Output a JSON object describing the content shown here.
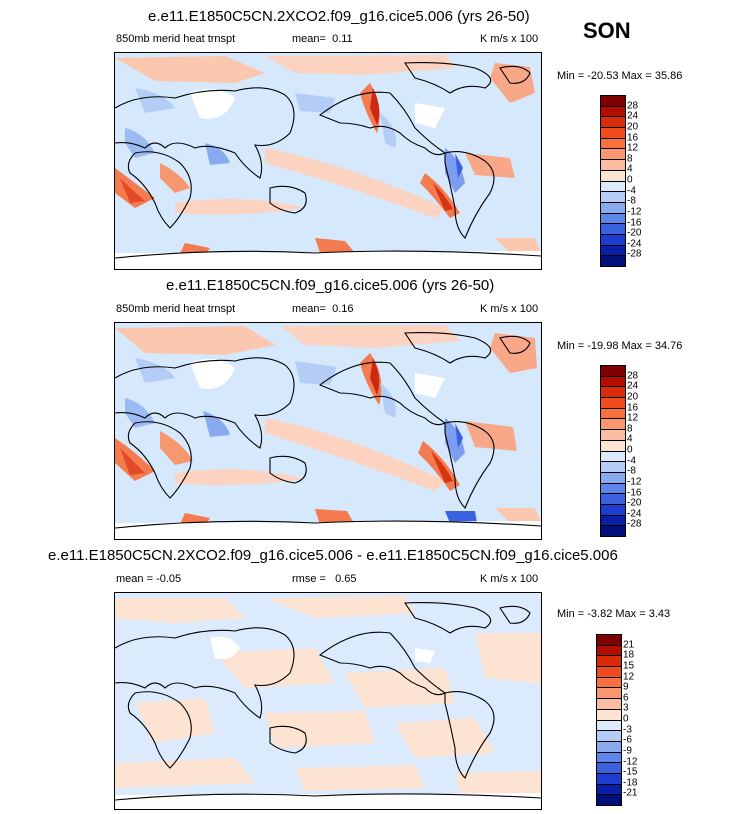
{
  "season": "SON",
  "units": "K m/s x 100",
  "panels": [
    {
      "title": "e.e11.E1850C5CN.2XCO2.f09_g16.cice5.006 (yrs 26-50)",
      "variable": "850mb merid heat trnspt",
      "mean_label": "mean=",
      "mean": "0.11",
      "minmax": "Min = -20.53 Max =  35.86",
      "levels": [
        "28",
        "24",
        "20",
        "16",
        "12",
        "8",
        "4",
        "0",
        "-4",
        "-8",
        "-12",
        "-16",
        "-20",
        "-24",
        "-28"
      ]
    },
    {
      "title": "e.e11.E1850C5CN.f09_g16.cice5.006 (yrs 26-50)",
      "variable": "850mb merid heat trnspt",
      "mean_label": "mean=",
      "mean": "0.16",
      "minmax": "Min = -19.98 Max =  34.76",
      "levels": [
        "28",
        "24",
        "20",
        "16",
        "12",
        "8",
        "4",
        "0",
        "-4",
        "-8",
        "-12",
        "-16",
        "-20",
        "-24",
        "-28"
      ]
    },
    {
      "title": "e.e11.E1850C5CN.2XCO2.f09_g16.cice5.006 - e.e11.E1850C5CN.f09_g16.cice5.006",
      "mean_label": "mean =",
      "mean": "-0.05",
      "rmse_label": "rmse =",
      "rmse": "0.65",
      "minmax": "Min =  -3.82 Max =   3.43",
      "levels": [
        "21",
        "18",
        "15",
        "12",
        "9",
        "6",
        "3",
        "0",
        "-3",
        "-6",
        "-9",
        "-12",
        "-15",
        "-18",
        "-21"
      ]
    }
  ],
  "colors": [
    "#7f0000",
    "#b30d00",
    "#d92b0a",
    "#ef4b1e",
    "#f7703f",
    "#fa9670",
    "#fbbda1",
    "#fde3d2",
    "#dbeafc",
    "#b4cdf6",
    "#8aaaf0",
    "#5e86ea",
    "#3a62e0",
    "#1c3dcf",
    "#0a1fa8",
    "#000f7a"
  ]
}
